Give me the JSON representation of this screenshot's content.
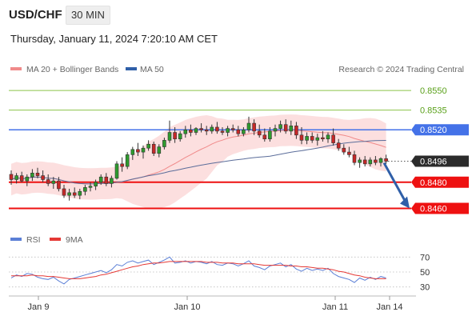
{
  "header": {
    "pair": "USD/CHF",
    "interval": "30 MIN",
    "timestamp": "Thursday, January 11, 2024 7:20:10 AM CET"
  },
  "legend": {
    "ma20_label": "MA 20 + Bollinger Bands",
    "ma50_label": "MA 50",
    "credit": "Research © 2024 Trading Central",
    "rsi_label": "RSI",
    "ma9_label": "9MA"
  },
  "colors": {
    "candle_up": "#2e9b2e",
    "candle_down": "#c62828",
    "ma20": "#f08a8a",
    "bollinger_fill": "#fbd9d9",
    "ma50": "#5b6d9a",
    "resistance_line": "#8bc34a",
    "blue_level": "#4472e8",
    "red_level": "#ee1111",
    "arrow": "#2f5fa8",
    "rsi": "#5b7fd6",
    "rsi_ma": "#e53935"
  },
  "chart_data": [
    {
      "type": "candlestick",
      "title": "USD/CHF 30 MIN",
      "x_ticks": [
        "Jan 9",
        "Jan 10",
        "Jan 11",
        "Jan 14"
      ],
      "ylim": [
        0.8453,
        0.8558
      ],
      "levels": [
        {
          "value": 0.855,
          "label": "0.8550",
          "kind": "resistance"
        },
        {
          "value": 0.8535,
          "label": "0.8535",
          "kind": "resistance"
        },
        {
          "value": 0.852,
          "label": "0.8520",
          "kind": "pivot"
        },
        {
          "value": 0.8496,
          "label": "0.8496",
          "kind": "current"
        },
        {
          "value": 0.848,
          "label": "0.8480",
          "kind": "support"
        },
        {
          "value": 0.846,
          "label": "0.8460",
          "kind": "support"
        }
      ],
      "candles": [
        [
          0.8486,
          0.8489,
          0.8478,
          0.8482
        ],
        [
          0.8482,
          0.8487,
          0.8479,
          0.8485
        ],
        [
          0.8485,
          0.8488,
          0.848,
          0.8481
        ],
        [
          0.8481,
          0.8486,
          0.8477,
          0.8484
        ],
        [
          0.8484,
          0.849,
          0.8481,
          0.8487
        ],
        [
          0.8487,
          0.8491,
          0.8483,
          0.8485
        ],
        [
          0.8485,
          0.8489,
          0.848,
          0.8482
        ],
        [
          0.8482,
          0.8486,
          0.8477,
          0.8479
        ],
        [
          0.8479,
          0.8484,
          0.8475,
          0.8481
        ],
        [
          0.8481,
          0.8484,
          0.8473,
          0.8475
        ],
        [
          0.8475,
          0.8478,
          0.8468,
          0.847
        ],
        [
          0.847,
          0.8475,
          0.8466,
          0.8472
        ],
        [
          0.8472,
          0.8476,
          0.8468,
          0.847
        ],
        [
          0.847,
          0.8475,
          0.8467,
          0.8473
        ],
        [
          0.8473,
          0.8478,
          0.847,
          0.8476
        ],
        [
          0.8476,
          0.848,
          0.8473,
          0.8477
        ],
        [
          0.8477,
          0.8482,
          0.8474,
          0.848
        ],
        [
          0.848,
          0.8486,
          0.8478,
          0.8484
        ],
        [
          0.8484,
          0.8487,
          0.8477,
          0.8479
        ],
        [
          0.8479,
          0.8485,
          0.8476,
          0.8483
        ],
        [
          0.8483,
          0.8496,
          0.8482,
          0.8494
        ],
        [
          0.8494,
          0.8499,
          0.8488,
          0.8492
        ],
        [
          0.8492,
          0.8503,
          0.849,
          0.8501
        ],
        [
          0.8501,
          0.8507,
          0.8497,
          0.8505
        ],
        [
          0.8505,
          0.851,
          0.85,
          0.8503
        ],
        [
          0.8503,
          0.8508,
          0.8498,
          0.8506
        ],
        [
          0.8506,
          0.8512,
          0.8504,
          0.8509
        ],
        [
          0.8509,
          0.8511,
          0.85,
          0.8502
        ],
        [
          0.8502,
          0.8509,
          0.8499,
          0.8507
        ],
        [
          0.8507,
          0.8514,
          0.8505,
          0.8512
        ],
        [
          0.8512,
          0.8527,
          0.851,
          0.8518
        ],
        [
          0.8518,
          0.8522,
          0.851,
          0.8513
        ],
        [
          0.8513,
          0.8519,
          0.8511,
          0.8517
        ],
        [
          0.8517,
          0.8523,
          0.8514,
          0.852
        ],
        [
          0.852,
          0.8524,
          0.8515,
          0.8518
        ],
        [
          0.8518,
          0.8522,
          0.8516,
          0.8521
        ],
        [
          0.8521,
          0.8525,
          0.8518,
          0.852
        ],
        [
          0.852,
          0.8523,
          0.8516,
          0.8519
        ],
        [
          0.8519,
          0.8524,
          0.8517,
          0.8522
        ],
        [
          0.8522,
          0.8526,
          0.8517,
          0.8519
        ],
        [
          0.8519,
          0.8522,
          0.8516,
          0.8518
        ],
        [
          0.8518,
          0.8523,
          0.8515,
          0.8521
        ],
        [
          0.8521,
          0.8524,
          0.8518,
          0.852
        ],
        [
          0.852,
          0.8523,
          0.8515,
          0.8517
        ],
        [
          0.8517,
          0.8522,
          0.8515,
          0.852
        ],
        [
          0.852,
          0.853,
          0.8518,
          0.8525
        ],
        [
          0.8525,
          0.8528,
          0.8516,
          0.8519
        ],
        [
          0.8519,
          0.8524,
          0.8514,
          0.8516
        ],
        [
          0.8516,
          0.8521,
          0.8511,
          0.8513
        ],
        [
          0.8513,
          0.8522,
          0.8511,
          0.8519
        ],
        [
          0.8519,
          0.8524,
          0.8515,
          0.8521
        ],
        [
          0.8521,
          0.8527,
          0.8518,
          0.8524
        ],
        [
          0.8524,
          0.8528,
          0.8517,
          0.8519
        ],
        [
          0.8519,
          0.8527,
          0.8516,
          0.8523
        ],
        [
          0.8523,
          0.8526,
          0.8513,
          0.8516
        ],
        [
          0.8516,
          0.8522,
          0.8509,
          0.8512
        ],
        [
          0.8512,
          0.8518,
          0.8509,
          0.8515
        ],
        [
          0.8515,
          0.8518,
          0.851,
          0.8512
        ],
        [
          0.8512,
          0.8517,
          0.8508,
          0.8514
        ],
        [
          0.8514,
          0.8519,
          0.8511,
          0.8513
        ],
        [
          0.8513,
          0.8518,
          0.851,
          0.8516
        ],
        [
          0.8516,
          0.8521,
          0.8508,
          0.851
        ],
        [
          0.851,
          0.8513,
          0.8504,
          0.8506
        ],
        [
          0.8506,
          0.8509,
          0.8501,
          0.8503
        ],
        [
          0.8503,
          0.8507,
          0.8499,
          0.8501
        ],
        [
          0.8501,
          0.8504,
          0.8493,
          0.8495
        ],
        [
          0.8495,
          0.8499,
          0.8491,
          0.8497
        ],
        [
          0.8497,
          0.85,
          0.8492,
          0.8494
        ],
        [
          0.8494,
          0.8499,
          0.8492,
          0.8497
        ],
        [
          0.8497,
          0.85,
          0.8493,
          0.8495
        ],
        [
          0.8495,
          0.8499,
          0.8492,
          0.8498
        ],
        [
          0.8498,
          0.8501,
          0.8494,
          0.8496
        ]
      ]
    },
    {
      "type": "line",
      "title": "RSI",
      "series": [
        {
          "name": "RSI",
          "values": [
            42,
            46,
            44,
            48,
            47,
            43,
            41,
            40,
            43,
            38,
            34,
            40,
            42,
            44,
            46,
            48,
            50,
            52,
            49,
            53,
            60,
            58,
            63,
            65,
            62,
            64,
            66,
            60,
            63,
            66,
            70,
            62,
            63,
            65,
            62,
            64,
            63,
            61,
            64,
            60,
            59,
            62,
            61,
            58,
            61,
            65,
            58,
            56,
            53,
            58,
            60,
            62,
            57,
            60,
            54,
            51,
            55,
            52,
            54,
            52,
            55,
            48,
            44,
            42,
            40,
            36,
            42,
            39,
            43,
            40,
            44,
            42
          ]
        },
        {
          "name": "9MA",
          "values": [
            45,
            45,
            45,
            45,
            46,
            45,
            45,
            44,
            44,
            43,
            42,
            41,
            41,
            41,
            42,
            43,
            44,
            46,
            47,
            49,
            51,
            53,
            55,
            57,
            58,
            60,
            61,
            62,
            62,
            63,
            64,
            64,
            64,
            64,
            64,
            64,
            64,
            63,
            63,
            63,
            62,
            62,
            62,
            61,
            61,
            61,
            61,
            60,
            59,
            59,
            59,
            59,
            59,
            58,
            58,
            57,
            57,
            56,
            55,
            55,
            54,
            53,
            51,
            50,
            48,
            46,
            45,
            43,
            42,
            41,
            41,
            41
          ]
        }
      ],
      "ylim": [
        20,
        80
      ],
      "y_ticks": [
        "70",
        "50",
        "30"
      ]
    }
  ]
}
